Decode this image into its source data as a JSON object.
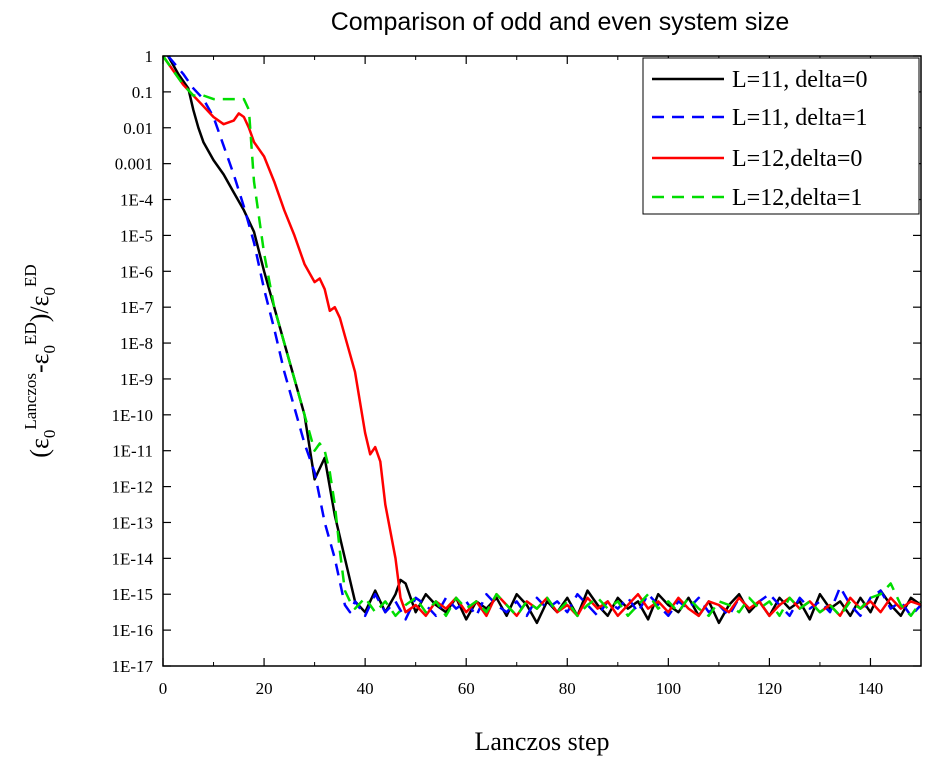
{
  "chart_data": {
    "type": "line",
    "title": "Comparison of odd and even system size",
    "xlabel": "Lanczos step",
    "ylabel": {
      "open": "(ε",
      "sub1": "0",
      "sup1": "Lanczos",
      "mid": "-ε",
      "sub2": "0",
      "sup2": "ED",
      "slash": ")/ε",
      "sub3": "0",
      "sup3": "ED"
    },
    "xlim": [
      0,
      150
    ],
    "ylim_log10": [
      -17,
      0
    ],
    "y_scale": "log",
    "grid": false,
    "legend_position": "top-right",
    "x_ticks": [
      0,
      20,
      40,
      60,
      80,
      100,
      120,
      140
    ],
    "x_tick_labels": [
      "0",
      "20",
      "40",
      "60",
      "80",
      "100",
      "120",
      "140"
    ],
    "y_ticks_log10": [
      0,
      -1,
      -2,
      -3,
      -4,
      -5,
      -6,
      -7,
      -8,
      -9,
      -10,
      -11,
      -12,
      -13,
      -14,
      -15,
      -16,
      -17
    ],
    "y_tick_labels": [
      "1",
      "0.1",
      "0.01",
      "0.001",
      "1E-4",
      "1E-5",
      "1E-6",
      "1E-7",
      "1E-8",
      "1E-9",
      "1E-10",
      "1E-11",
      "1E-12",
      "1E-13",
      "1E-14",
      "1E-15",
      "1E-16",
      "1E-17"
    ],
    "series": [
      {
        "name": "L=11, delta=0",
        "color": "#000000",
        "dash": "solid",
        "x": [
          1,
          3,
          5,
          6,
          7,
          8,
          10,
          12,
          14,
          16,
          18,
          20,
          22,
          24,
          26,
          28,
          30,
          32,
          34,
          36,
          38,
          40,
          42,
          44,
          46,
          47,
          48,
          50,
          52,
          54,
          56,
          58,
          60,
          62,
          64,
          66,
          68,
          70,
          72,
          74,
          76,
          78,
          80,
          82,
          84,
          86,
          88,
          90,
          92,
          94,
          96,
          98,
          100,
          102,
          104,
          106,
          108,
          110,
          112,
          114,
          116,
          118,
          120,
          122,
          124,
          126,
          128,
          130,
          132,
          134,
          136,
          138,
          140,
          142,
          144,
          146,
          148,
          150
        ],
        "log10_y": [
          0,
          -0.5,
          -0.9,
          -1.5,
          -2,
          -2.4,
          -2.9,
          -3.3,
          -3.8,
          -4.3,
          -4.9,
          -6,
          -7,
          -8,
          -9,
          -10,
          -11.8,
          -11.2,
          -12.8,
          -14,
          -15.2,
          -15.5,
          -14.9,
          -15.5,
          -15,
          -14.6,
          -14.7,
          -15.5,
          -15,
          -15.3,
          -15.5,
          -15.1,
          -15.7,
          -15.2,
          -15.4,
          -15.1,
          -15.6,
          -15,
          -15.3,
          -15.8,
          -15.2,
          -15.5,
          -15.1,
          -15.6,
          -14.9,
          -15.3,
          -15.6,
          -15.1,
          -15.4,
          -15.2,
          -15.7,
          -15,
          -15.3,
          -15.5,
          -15.1,
          -15.6,
          -15.2,
          -15.8,
          -15.3,
          -15,
          -15.5,
          -15.2,
          -15.6,
          -15.1,
          -15.4,
          -15.2,
          -15.7,
          -15,
          -15.4,
          -15.2,
          -15.6,
          -15.1,
          -15.5,
          -14.9,
          -15.3,
          -15.6,
          -15.1,
          -15.3
        ]
      },
      {
        "name": "L=11, delta=1",
        "color": "#0000ff",
        "dash": "dashed",
        "x": [
          1,
          4,
          6,
          8,
          10,
          12,
          14,
          16,
          18,
          20,
          22,
          24,
          26,
          28,
          30,
          32,
          34,
          36,
          37,
          38,
          40,
          42,
          44,
          46,
          48,
          50,
          52,
          54,
          56,
          58,
          60,
          62,
          64,
          66,
          68,
          70,
          72,
          74,
          76,
          78,
          80,
          82,
          84,
          86,
          88,
          90,
          92,
          94,
          96,
          98,
          100,
          102,
          104,
          106,
          108,
          110,
          112,
          114,
          116,
          118,
          120,
          122,
          124,
          126,
          128,
          130,
          132,
          134,
          136,
          138,
          140,
          142,
          144,
          146,
          148,
          150
        ],
        "log10_y": [
          0,
          -0.5,
          -0.9,
          -1.2,
          -1.7,
          -2.5,
          -3.3,
          -4.2,
          -5.2,
          -6.5,
          -7.6,
          -8.8,
          -9.8,
          -10.8,
          -11.6,
          -13,
          -14,
          -15.3,
          -15.5,
          -15.2,
          -15.6,
          -15,
          -15.5,
          -15.2,
          -15.7,
          -15.1,
          -15.3,
          -15.6,
          -15.1,
          -15.4,
          -15.2,
          -15.6,
          -15,
          -15.3,
          -15.5,
          -15.2,
          -15.6,
          -15.1,
          -15.4,
          -15.2,
          -15.5,
          -15,
          -15.3,
          -15.6,
          -15.2,
          -15.4,
          -15.1,
          -15.5,
          -15,
          -15.3,
          -15.6,
          -15.2,
          -15.4,
          -15.1,
          -15.5,
          -15.3,
          -15.6,
          -15.1,
          -15.4,
          -15.2,
          -15,
          -15.3,
          -15.6,
          -15.1,
          -15.4,
          -15.2,
          -15.5,
          -14.8,
          -15.3,
          -15.6,
          -15.1,
          -14.9,
          -15.4,
          -15.2,
          -15.6,
          -15.3
        ]
      },
      {
        "name": "L=12,delta=0",
        "color": "#ff0000",
        "dash": "solid",
        "x": [
          0,
          2,
          4,
          6,
          8,
          10,
          12,
          14,
          15,
          16,
          17,
          18,
          20,
          22,
          24,
          26,
          28,
          30,
          31,
          32,
          33,
          34,
          35,
          36,
          38,
          40,
          41,
          42,
          43,
          44,
          46,
          47,
          48,
          50,
          52,
          54,
          56,
          58,
          60,
          62,
          64,
          66,
          68,
          70,
          72,
          74,
          76,
          78,
          80,
          82,
          84,
          86,
          88,
          90,
          92,
          94,
          96,
          98,
          100,
          102,
          104,
          106,
          108,
          110,
          112,
          114,
          116,
          118,
          120,
          122,
          124,
          126,
          128,
          130,
          132,
          134,
          136,
          138,
          140,
          142,
          144,
          146,
          148,
          150
        ],
        "log10_y": [
          0,
          -0.4,
          -0.8,
          -1.1,
          -1.4,
          -1.7,
          -1.9,
          -1.8,
          -1.6,
          -1.7,
          -2,
          -2.4,
          -2.8,
          -3.5,
          -4.3,
          -5,
          -5.8,
          -6.3,
          -6.2,
          -6.5,
          -7.1,
          -7,
          -7.3,
          -7.8,
          -8.8,
          -10.5,
          -11.1,
          -10.9,
          -11.3,
          -12.5,
          -14,
          -15.1,
          -15.5,
          -15.3,
          -15.6,
          -15.2,
          -15.4,
          -15.1,
          -15.5,
          -15.2,
          -15.6,
          -15,
          -15.3,
          -15.6,
          -15.2,
          -15.4,
          -15.1,
          -15.5,
          -15.3,
          -15.6,
          -15.1,
          -15.4,
          -15.2,
          -15.6,
          -15.3,
          -15,
          -15.4,
          -15.2,
          -15.5,
          -15.1,
          -15.4,
          -15.6,
          -15.2,
          -15.3,
          -15.5,
          -15.1,
          -15.4,
          -15.2,
          -15.6,
          -15.3,
          -15.1,
          -15.4,
          -15.2,
          -15.5,
          -15.3,
          -15.6,
          -15.1,
          -15.4,
          -15.2,
          -15.5,
          -15.1,
          -15.4,
          -15.2,
          -15.3
        ]
      },
      {
        "name": "L=12,delta=1",
        "color": "#00dd00",
        "dash": "dashed",
        "x": [
          0,
          2,
          4,
          6,
          8,
          10,
          12,
          14,
          16,
          17,
          18,
          20,
          22,
          24,
          26,
          28,
          30,
          31,
          32,
          33,
          34,
          35,
          36,
          37,
          38,
          40,
          42,
          44,
          46,
          48,
          50,
          52,
          54,
          56,
          58,
          60,
          62,
          64,
          66,
          68,
          70,
          72,
          74,
          76,
          78,
          80,
          82,
          84,
          86,
          88,
          90,
          92,
          94,
          96,
          98,
          100,
          102,
          104,
          106,
          108,
          110,
          112,
          114,
          116,
          118,
          120,
          122,
          124,
          126,
          128,
          130,
          132,
          134,
          136,
          138,
          140,
          142,
          144,
          146,
          148,
          150
        ],
        "log10_y": [
          0,
          -0.4,
          -0.8,
          -1.1,
          -1.1,
          -1.2,
          -1.2,
          -1.2,
          -1.2,
          -1.5,
          -3.5,
          -5.5,
          -7,
          -8,
          -9,
          -10,
          -11,
          -10.8,
          -11,
          -11.6,
          -12.5,
          -13.8,
          -14.9,
          -15.2,
          -15.4,
          -15.1,
          -15.5,
          -15.2,
          -15.6,
          -15.3,
          -15.1,
          -15.5,
          -15.2,
          -15.6,
          -15.1,
          -15.4,
          -15.2,
          -15.5,
          -15,
          -15.3,
          -15.6,
          -15.2,
          -15.4,
          -15.1,
          -15.5,
          -15.2,
          -15.6,
          -15.3,
          -15.1,
          -15.4,
          -15.2,
          -15.6,
          -15.3,
          -15,
          -15.4,
          -15.2,
          -15.5,
          -15.1,
          -15.4,
          -15.6,
          -15.2,
          -15.3,
          -15.5,
          -15.1,
          -15.4,
          -15.2,
          -15.6,
          -15.1,
          -15.4,
          -15.2,
          -15.5,
          -15.3,
          -15.6,
          -15.2,
          -15.4,
          -15.1,
          -15,
          -14.7,
          -15.3,
          -15.6,
          -15.2
        ]
      }
    ]
  }
}
